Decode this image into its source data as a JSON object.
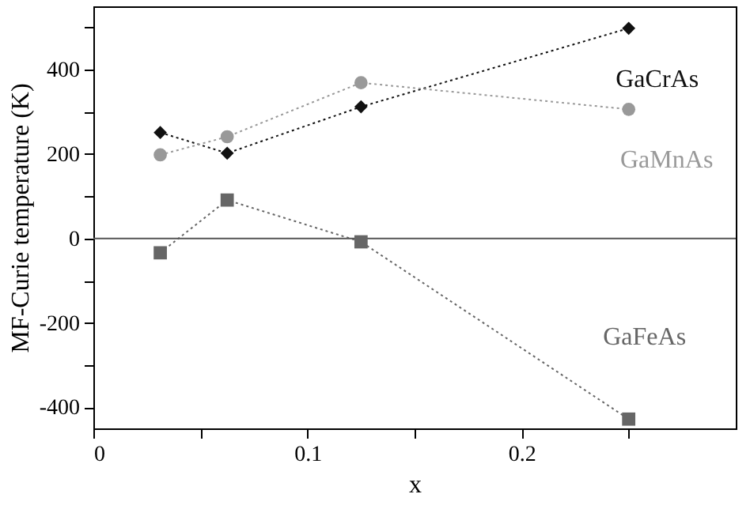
{
  "chart_data": {
    "type": "line",
    "xlabel": "x",
    "ylabel": "MF-Curie temperature (K)",
    "xlim": [
      0,
      0.3
    ],
    "ylim": [
      -450,
      550
    ],
    "xticks": [
      0,
      {
        "value": 0.05,
        "label": null
      },
      0.1,
      {
        "value": 0.15,
        "label": null
      },
      0.2,
      {
        "value": 0.25,
        "label": null
      }
    ],
    "yticks": [
      -400,
      {
        "value": -300,
        "label": null
      },
      -200,
      {
        "value": -100,
        "label": null
      },
      0,
      {
        "value": 100,
        "label": null
      },
      200,
      {
        "value": 300,
        "label": null
      },
      400,
      {
        "value": 500,
        "label": null
      }
    ],
    "line_style": "dotted",
    "grid": false,
    "legend": false,
    "ref_lines": [
      {
        "axis": "y",
        "value": 0,
        "color": "#555555",
        "line_style": "solid"
      }
    ],
    "series": [
      {
        "name": "GaCrAs",
        "color": "#111111",
        "marker": "diamond",
        "x": [
          0.03125,
          0.0625,
          0.125,
          0.25
        ],
        "values": [
          251,
          202,
          312,
          498
        ]
      },
      {
        "name": "GaMnAs",
        "color": "#999999",
        "marker": "circle",
        "x": [
          0.03125,
          0.0625,
          0.125,
          0.25
        ],
        "values": [
          198,
          241,
          369,
          306
        ]
      },
      {
        "name": "GaFeAs",
        "color": "#666666",
        "marker": "square",
        "x": [
          0.03125,
          0.0625,
          0.125,
          0.25
        ],
        "values": [
          -34,
          91,
          -8,
          -428
        ]
      }
    ]
  }
}
